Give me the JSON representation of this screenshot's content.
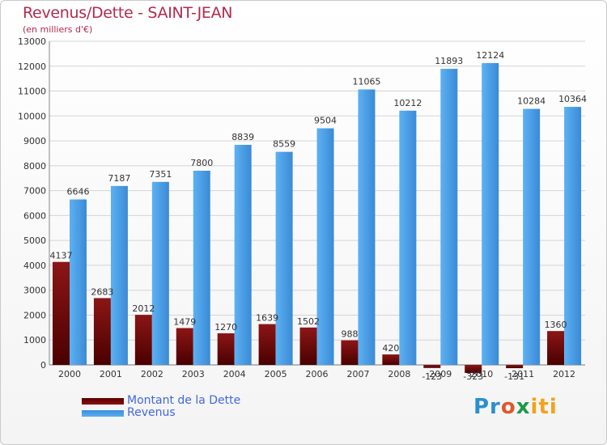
{
  "chart_data": {
    "type": "bar",
    "title": "Revenus/Dette - SAINT-JEAN",
    "subtitle": "(en milliers d'€)",
    "categories": [
      "2000",
      "2001",
      "2002",
      "2003",
      "2004",
      "2005",
      "2006",
      "2007",
      "2008",
      "2009",
      "2010",
      "2011",
      "2012"
    ],
    "series": [
      {
        "name": "Montant de la Dette",
        "color": "#7a0a0a",
        "values": [
          4137,
          2683,
          2012,
          1479,
          1270,
          1639,
          1502,
          988,
          420,
          -123,
          -323,
          -131,
          1360
        ]
      },
      {
        "name": "Revenus",
        "color": "#4a9de6",
        "values": [
          6646,
          7187,
          7351,
          7800,
          8839,
          8559,
          9504,
          11065,
          10212,
          11893,
          12124,
          10284,
          10364
        ]
      }
    ],
    "ylim": [
      0,
      13000
    ],
    "yticks": [
      0,
      1000,
      2000,
      3000,
      4000,
      5000,
      6000,
      7000,
      8000,
      9000,
      10000,
      11000,
      12000,
      13000
    ],
    "grid": true,
    "legend_position": "bottom-left"
  },
  "logo": {
    "parts": [
      "Pr",
      "o",
      "x",
      "iti"
    ]
  }
}
